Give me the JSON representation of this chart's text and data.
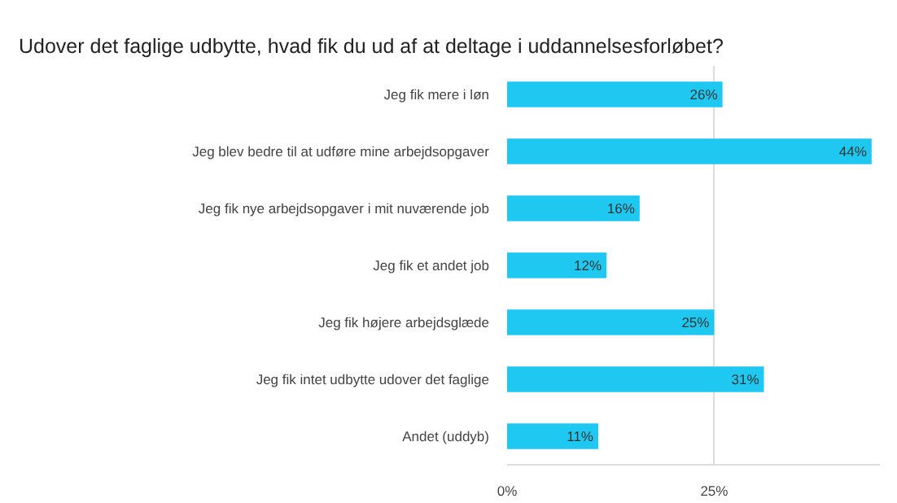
{
  "chart_data": {
    "type": "bar",
    "orientation": "horizontal",
    "title": "Udover det faglige udbytte, hvad fik du ud af at deltage i uddannelsesforløbet?",
    "categories": [
      "Jeg fik mere i løn",
      "Jeg blev bedre til at udføre mine arbejdsopgaver",
      "Jeg fik nye arbejdsopgaver i mit nuværende job",
      "Jeg fik et andet job",
      "Jeg fik højere arbejdsglæde",
      "Jeg fik intet udbytte udover det faglige",
      "Andet (uddyb)"
    ],
    "values": [
      26,
      44,
      16,
      12,
      25,
      31,
      11
    ],
    "value_labels": [
      "26%",
      "44%",
      "16%",
      "12%",
      "25%",
      "31%",
      "11%"
    ],
    "color": "#1ec8f0",
    "xlim": [
      0,
      45
    ],
    "xticks": [
      {
        "value": 0,
        "label": "0%"
      },
      {
        "value": 25,
        "label": "25%"
      }
    ],
    "grid": "x"
  }
}
